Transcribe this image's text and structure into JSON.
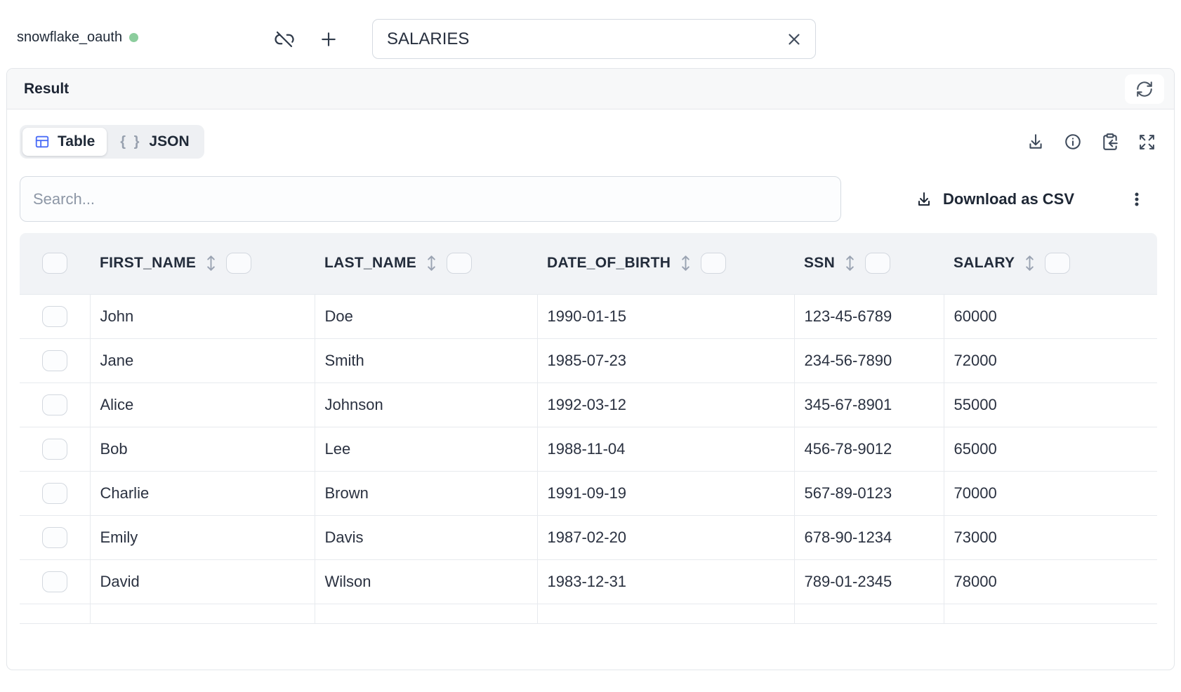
{
  "colors": {
    "accent_blue": "#4a6cf7",
    "status_green": "#8ccd9d"
  },
  "topbar": {
    "connection_name": "snowflake_oauth",
    "table_input_value": "SALARIES"
  },
  "result_panel": {
    "title": "Result",
    "view_tabs": [
      {
        "label": "Table",
        "icon": "table-grid-icon",
        "active": true
      },
      {
        "label": "JSON",
        "icon_text": "{ }",
        "active": false
      }
    ],
    "toolbar_icons": [
      "download-icon",
      "info-icon",
      "clipboard-copy-icon",
      "expand-icon"
    ],
    "search_placeholder": "Search...",
    "download_csv_label": "Download as CSV"
  },
  "table": {
    "columns": [
      "FIRST_NAME",
      "LAST_NAME",
      "DATE_OF_BIRTH",
      "SSN",
      "SALARY"
    ],
    "rows": [
      [
        "John",
        "Doe",
        "1990-01-15",
        "123-45-6789",
        "60000"
      ],
      [
        "Jane",
        "Smith",
        "1985-07-23",
        "234-56-7890",
        "72000"
      ],
      [
        "Alice",
        "Johnson",
        "1992-03-12",
        "345-67-8901",
        "55000"
      ],
      [
        "Bob",
        "Lee",
        "1988-11-04",
        "456-78-9012",
        "65000"
      ],
      [
        "Charlie",
        "Brown",
        "1991-09-19",
        "567-89-0123",
        "70000"
      ],
      [
        "Emily",
        "Davis",
        "1987-02-20",
        "678-90-1234",
        "73000"
      ],
      [
        "David",
        "Wilson",
        "1983-12-31",
        "789-01-2345",
        "78000"
      ]
    ]
  }
}
